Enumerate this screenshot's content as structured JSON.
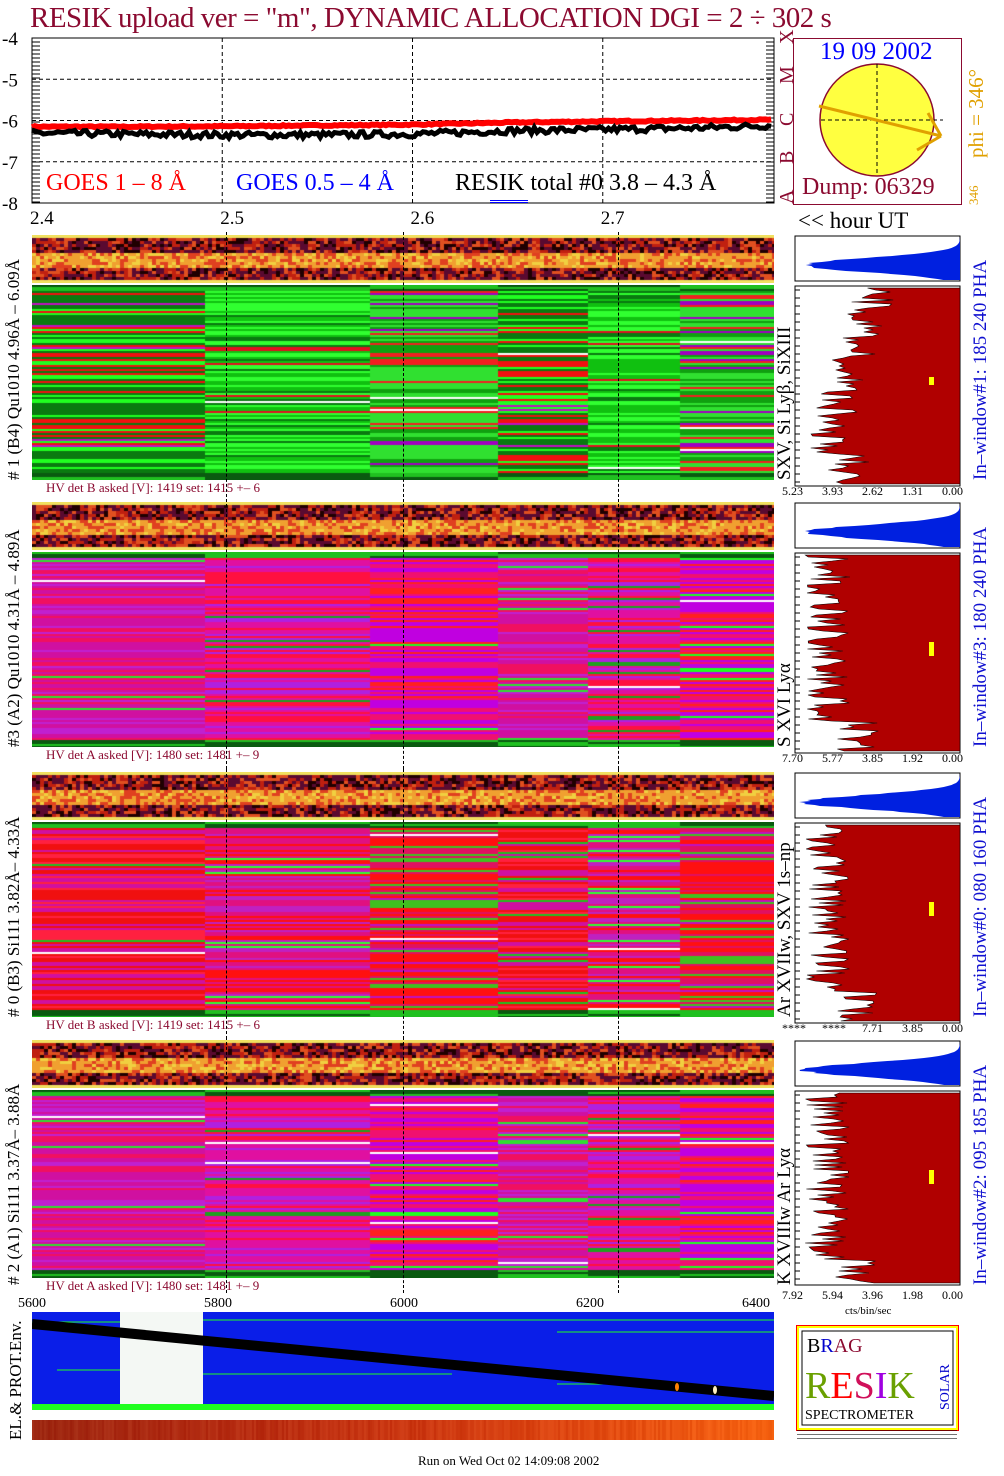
{
  "title": "RESIK upload ver = \"m\", DYNAMIC ALLOCATION  DGI =   2 ÷ 302 s",
  "colors": {
    "title": "#8b0a30",
    "goes_long": "#ff0000",
    "goes_short": "#0000ff",
    "resik": "#000000",
    "hist_fill": "#b00000",
    "hist_top": "#0020e0",
    "sun": "#ffff40",
    "phi": "#e0a000"
  },
  "lightcurve": {
    "legend": {
      "goes_long": "GOES 1 – 8 Å",
      "goes_short": "GOES 0.5 – 4 Å",
      "resik": "RESIK total #0  3.8 – 4.3 Å"
    },
    "class_letters": [
      "X",
      "M",
      "C",
      "B",
      "A"
    ]
  },
  "sun": {
    "date": "19 09 2002",
    "dump": "Dump: 06329",
    "phi": "phi = 346°",
    "phi_small": "346",
    "phi_small2": "346"
  },
  "hour_label": "<< hour UT",
  "panels": [
    {
      "label": "# 1 (B4) Qu1010 4.96Å – 6.09Å",
      "lines": "SXV, Si Lyβ, SiXIII",
      "hv": "HV det B asked [V]:  1419 set:  1415 +–    6",
      "window": "In–window#1:  185 240 PHA",
      "hist_ticks": [
        "5.23",
        "3.93",
        "2.62",
        "1.31",
        "0.00"
      ],
      "scheme": "green"
    },
    {
      "label": "#3 (A2) Qu1010  4.31Å – 4.89Å",
      "lines": "S XVI Lyα",
      "hv": "HV det A asked [V]:  1480 set:  1481 +–    9",
      "window": "In–window#3:  180 240 PHA",
      "hist_ticks": [
        "7.70",
        "5.77",
        "3.85",
        "1.92",
        "0.00"
      ],
      "scheme": "magenta"
    },
    {
      "label": "# 0 (B3) Si111  3.82Å– 4.33Å",
      "lines": "Ar XVIIw,  SXV 1s–np",
      "hv": "HV det B asked [V]:  1419 set:  1415 +–    6",
      "window": "In–window#0:  080 160 PHA",
      "hist_ticks": [
        "****",
        "****",
        "7.71",
        "3.85",
        "0.00"
      ],
      "scheme": "red"
    },
    {
      "label": "# 2 (A1) Si111  3.37Å– 3.88Å",
      "lines": "K XVIIIw  Ar Lyα",
      "hv": "HV det A asked [V]:  1480 set:  1481 +–    9",
      "window": "In–window#2:  095 185 PHA",
      "hist_ticks": [
        "7.92",
        "5.94",
        "3.96",
        "1.98",
        "0.00"
      ],
      "scheme": "magenta"
    }
  ],
  "hist_xlabel": "cts/bin/sec",
  "env": {
    "label": "EL.& PROT.Env.",
    "ticks": [
      "5600",
      "5800",
      "6000",
      "6200",
      "6400"
    ]
  },
  "logo": {
    "text": "BRAG RESIK SOLAR SPECTROMETER",
    "bottom": "SPECTROMETER"
  },
  "footer": "Run on Wed Oct 02 14:09:08 2002",
  "chart_data": {
    "type": "line",
    "title": "RESIK upload ver = \"m\", DYNAMIC ALLOCATION  DGI =   2 ÷ 302 s",
    "xlabel": "hour UT",
    "ylabel": "",
    "xlim": [
      2.4,
      2.79
    ],
    "ylim": [
      -8,
      -4
    ],
    "xticks": [
      "2.4",
      "2.5",
      "2.6",
      "2.7"
    ],
    "yticks": [
      "-4",
      "-5",
      "-6",
      "-7",
      "-8"
    ],
    "x": [
      2.4,
      2.45,
      2.5,
      2.55,
      2.6,
      2.65,
      2.7,
      2.75,
      2.79
    ],
    "series": [
      {
        "name": "GOES 1 – 8 Å",
        "values": [
          -6.15,
          -6.15,
          -6.14,
          -6.12,
          -6.1,
          -6.05,
          -6.02,
          -6.0,
          -5.98
        ]
      },
      {
        "name": "RESIK total #0  3.8 – 4.3 Å",
        "values": [
          -6.3,
          -6.33,
          -6.35,
          -6.35,
          -6.33,
          -6.25,
          -6.22,
          -6.18,
          -6.12
        ]
      }
    ],
    "grid": true,
    "legend": "bottom"
  }
}
